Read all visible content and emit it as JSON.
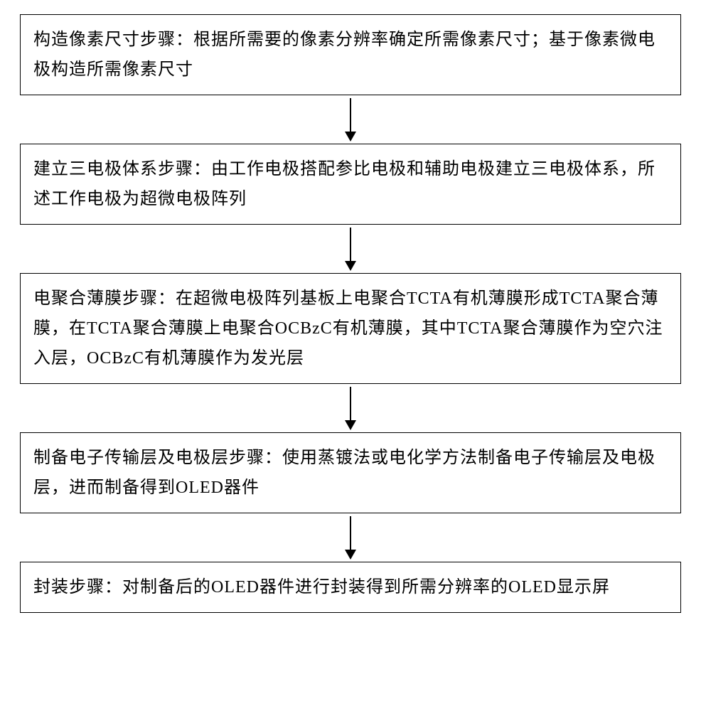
{
  "flowchart": {
    "type": "flowchart",
    "direction": "vertical",
    "box_border_color": "#000000",
    "box_border_width": 1.5,
    "box_background": "#ffffff",
    "text_color": "#000000",
    "font_size": 24,
    "font_family": "SimSun",
    "line_height": 1.75,
    "arrow_color": "#000000",
    "arrow_line_width": 2,
    "arrow_line_height": 48,
    "arrow_head_width": 16,
    "arrow_head_height": 14,
    "gap_height": 68,
    "steps": [
      {
        "id": "step1",
        "text": "构造像素尺寸步骤：根据所需要的像素分辨率确定所需像素尺寸；基于像素微电极构造所需像素尺寸"
      },
      {
        "id": "step2",
        "text": "建立三电极体系步骤：由工作电极搭配参比电极和辅助电极建立三电极体系，所述工作电极为超微电极阵列"
      },
      {
        "id": "step3",
        "text": "电聚合薄膜步骤：在超微电极阵列基板上电聚合TCTA有机薄膜形成TCTA聚合薄膜，在TCTA聚合薄膜上电聚合OCBzC有机薄膜，其中TCTA聚合薄膜作为空穴注入层，OCBzC有机薄膜作为发光层"
      },
      {
        "id": "step4",
        "text": "制备电子传输层及电极层步骤：使用蒸镀法或电化学方法制备电子传输层及电极层，进而制备得到OLED器件"
      },
      {
        "id": "step5",
        "text": "封装步骤：对制备后的OLED器件进行封装得到所需分辨率的OLED显示屏"
      }
    ]
  }
}
